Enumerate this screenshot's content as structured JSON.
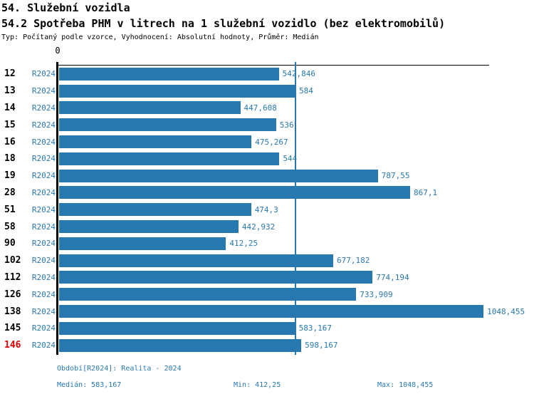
{
  "header": {
    "title1": "54. Služební vozidla",
    "title2": "54.2 Spotřeba PHM v litrech na 1 služební vozidlo (bez elektromobilů)",
    "subtitle": "Typ: Počítaný podle vzorce, Vyhodnocení: Absolutní hodnoty, Průměr: Medián"
  },
  "chart_data": {
    "type": "bar",
    "orientation": "horizontal",
    "title": "54.2 Spotřeba PHM v litrech na 1 služební vozidlo (bez elektromobilů)",
    "axis_zero_label": "0",
    "series_label": "R2024",
    "categories": [
      "12",
      "13",
      "14",
      "15",
      "16",
      "18",
      "19",
      "28",
      "51",
      "58",
      "90",
      "102",
      "112",
      "126",
      "138",
      "145",
      "146"
    ],
    "values": [
      542.846,
      584,
      447.608,
      536,
      475.267,
      544,
      787.55,
      867.1,
      474.3,
      442.932,
      412.25,
      677.182,
      774.194,
      733.909,
      1048.455,
      583.167,
      598.167
    ],
    "value_labels": [
      "542,846",
      "584",
      "447,608",
      "536",
      "475,267",
      "544",
      "787,55",
      "867,1",
      "474,3",
      "442,932",
      "412,25",
      "677,182",
      "774,194",
      "733,909",
      "1048,455",
      "583,167",
      "598,167"
    ],
    "highlighted_categories": [
      "146"
    ],
    "median": 583.167,
    "min": 412.25,
    "max": 1048.455,
    "xlim": [
      0,
      1064
    ],
    "grid": false,
    "legend": "none"
  },
  "footer": {
    "period": "Období[R2024]: Realita - 2024",
    "median": "Medián: 583,167",
    "min": "Min: 412,25",
    "max": "Max: 1048,455"
  },
  "colors": {
    "bar": "#2878b0",
    "accent_text": "#2878b0",
    "median_line": "#2878b0",
    "axis": "#000000",
    "highlight_red": "#dd0000"
  }
}
